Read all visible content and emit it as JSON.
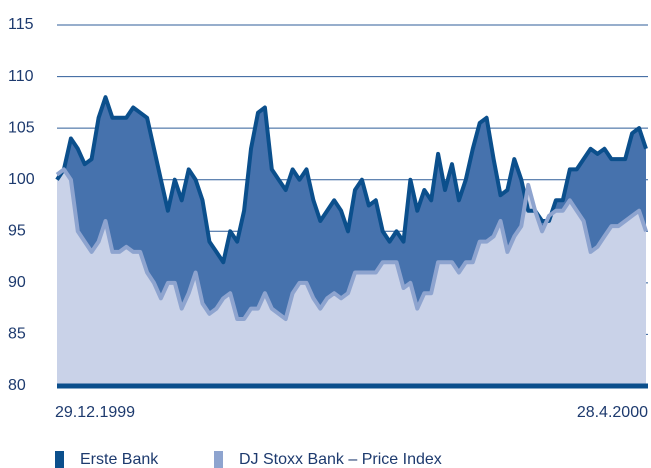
{
  "chart_data": {
    "type": "area",
    "categories": [
      "29.12.1999",
      null,
      null,
      null,
      null,
      null,
      null,
      null,
      null,
      null,
      null,
      null,
      null,
      null,
      null,
      null,
      null,
      null,
      null,
      null,
      null,
      null,
      null,
      null,
      null,
      null,
      null,
      null,
      null,
      null,
      null,
      null,
      null,
      null,
      null,
      null,
      null,
      null,
      null,
      null,
      null,
      null,
      null,
      null,
      null,
      null,
      null,
      null,
      null,
      null,
      null,
      null,
      null,
      null,
      null,
      null,
      null,
      null,
      null,
      null,
      null,
      null,
      null,
      null,
      null,
      null,
      null,
      null,
      null,
      null,
      null,
      null,
      null,
      null,
      null,
      null,
      null,
      null,
      null,
      null,
      null,
      null,
      null,
      null,
      null,
      "28.4.2000"
    ],
    "series": [
      {
        "name": "Erste Bank",
        "color": "#0b4f8c",
        "fill": "#4672ad",
        "values": [
          100,
          101,
          104,
          103,
          101.5,
          102,
          106,
          108,
          106,
          106,
          106,
          107,
          106.5,
          106,
          103,
          100,
          97,
          100,
          98,
          101,
          100,
          98,
          94,
          93,
          92,
          95,
          94,
          97,
          103,
          106.5,
          107,
          101,
          100,
          99,
          101,
          100,
          101,
          98,
          96,
          97,
          98,
          97,
          95,
          99,
          100,
          97.5,
          98,
          95,
          94,
          95,
          94,
          100,
          97,
          99,
          98,
          102.5,
          99,
          101.5,
          98,
          100,
          103,
          105.5,
          106,
          102,
          98.5,
          99,
          102,
          100,
          97,
          97,
          96,
          96,
          98,
          98,
          101,
          101,
          102,
          103,
          102.5,
          103,
          102,
          102,
          102,
          104.5,
          105,
          103
        ]
      },
      {
        "name": "DJ Stoxx Bank – Price Index",
        "color": "#8ea4cf",
        "fill": "#c9d2e8",
        "values": [
          100.5,
          101,
          100,
          95,
          94,
          93,
          94,
          96,
          93,
          93,
          93.5,
          93,
          93,
          91,
          90,
          88.5,
          90,
          90,
          87.5,
          89,
          91,
          88,
          87,
          87.5,
          88.5,
          89,
          86.5,
          86.5,
          87.5,
          87.5,
          89,
          87.5,
          87,
          86.5,
          89,
          90,
          90,
          88.5,
          87.5,
          88.5,
          89,
          88.5,
          89,
          91,
          91,
          91,
          91,
          92,
          92,
          92,
          89.5,
          90,
          87.5,
          89,
          89,
          92,
          92,
          92,
          91,
          92,
          92,
          94,
          94,
          94.5,
          96,
          93,
          94.5,
          95.5,
          99.5,
          97,
          95,
          96.5,
          97,
          97,
          98,
          97,
          96,
          93,
          93.5,
          94.5,
          95.5,
          95.5,
          96,
          96.5,
          97,
          95
        ]
      }
    ],
    "ylim": [
      80,
      115
    ],
    "yticks": [
      80,
      85,
      90,
      95,
      100,
      105,
      110,
      115
    ],
    "grid": true,
    "legend": "bottom-left"
  }
}
